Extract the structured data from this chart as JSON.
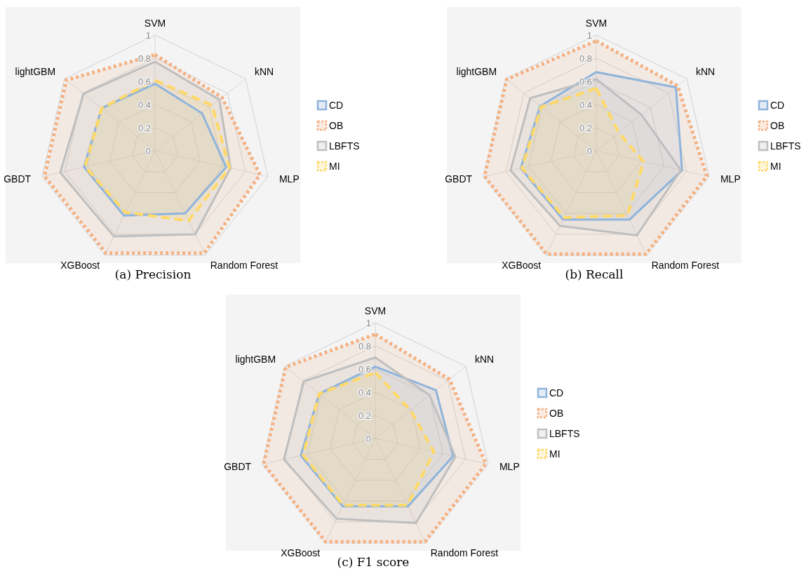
{
  "chart_data": [
    {
      "type": "radar",
      "title": "(a) Precision",
      "categories": [
        "SVM",
        "kNN",
        "MLP",
        "Random Forest",
        "XGBoost",
        "GBDT",
        "lightGBM"
      ],
      "ylim": [
        0,
        1
      ],
      "yticks": [
        0,
        0.2,
        0.4,
        0.6,
        0.8,
        1
      ],
      "grid": true,
      "legend": "right",
      "marker": "none",
      "series": [
        {
          "name": "CD",
          "color": "#8fb4db",
          "line_style": "solid",
          "values": [
            0.58,
            0.52,
            0.63,
            0.6,
            0.62,
            0.63,
            0.59
          ]
        },
        {
          "name": "OB",
          "color": "#f4b183",
          "line_style": "dotted",
          "values": [
            0.83,
            0.74,
            0.93,
            0.98,
            0.98,
            0.98,
            0.98
          ]
        },
        {
          "name": "LBFTS",
          "color": "#bfbfbf",
          "line_style": "solid",
          "values": [
            0.77,
            0.71,
            0.67,
            0.8,
            0.82,
            0.84,
            0.79
          ]
        },
        {
          "name": "MI",
          "color": "#ffd966",
          "line_style": "dashed",
          "values": [
            0.61,
            0.63,
            0.66,
            0.67,
            0.59,
            0.62,
            0.59
          ]
        }
      ]
    },
    {
      "type": "radar",
      "title": "(b) Recall",
      "categories": [
        "SVM",
        "kNN",
        "MLP",
        "Random Forest",
        "XGBoost",
        "GBDT",
        "lightGBM"
      ],
      "ylim": [
        0,
        1
      ],
      "yticks": [
        0,
        0.2,
        0.4,
        0.6,
        0.8,
        1
      ],
      "grid": true,
      "legend": "right",
      "marker": "none",
      "series": [
        {
          "name": "CD",
          "color": "#8fb4db",
          "line_style": "solid",
          "values": [
            0.68,
            0.88,
            0.76,
            0.66,
            0.66,
            0.67,
            0.62
          ]
        },
        {
          "name": "OB",
          "color": "#f4b183",
          "line_style": "dotted",
          "values": [
            0.95,
            0.9,
            0.98,
            0.99,
            0.99,
            0.99,
            0.99
          ]
        },
        {
          "name": "LBFTS",
          "color": "#bfbfbf",
          "line_style": "solid",
          "values": [
            0.62,
            0.5,
            0.75,
            0.81,
            0.72,
            0.76,
            0.73
          ]
        },
        {
          "name": "MI",
          "color": "#ffd966",
          "line_style": "dashed",
          "values": [
            0.54,
            0.25,
            0.42,
            0.62,
            0.64,
            0.66,
            0.61
          ]
        }
      ]
    },
    {
      "type": "radar",
      "title": "(c) F1 score",
      "categories": [
        "SVM",
        "kNN",
        "MLP",
        "Random Forest",
        "XGBoost",
        "GBDT",
        "lightGBM"
      ],
      "ylim": [
        0,
        1
      ],
      "yticks": [
        0,
        0.2,
        0.4,
        0.6,
        0.8,
        1
      ],
      "grid": true,
      "legend": "right",
      "marker": "none",
      "series": [
        {
          "name": "CD",
          "color": "#8fb4db",
          "line_style": "solid",
          "values": [
            0.62,
            0.67,
            0.69,
            0.65,
            0.65,
            0.66,
            0.62
          ]
        },
        {
          "name": "OB",
          "color": "#f4b183",
          "line_style": "dotted",
          "values": [
            0.9,
            0.82,
            0.98,
            0.99,
            0.99,
            0.99,
            0.99
          ]
        },
        {
          "name": "LBFTS",
          "color": "#bfbfbf",
          "line_style": "solid",
          "values": [
            0.7,
            0.6,
            0.71,
            0.81,
            0.77,
            0.81,
            0.79
          ]
        },
        {
          "name": "MI",
          "color": "#ffd966",
          "line_style": "dashed",
          "values": [
            0.57,
            0.39,
            0.52,
            0.64,
            0.64,
            0.64,
            0.62
          ]
        }
      ]
    }
  ]
}
